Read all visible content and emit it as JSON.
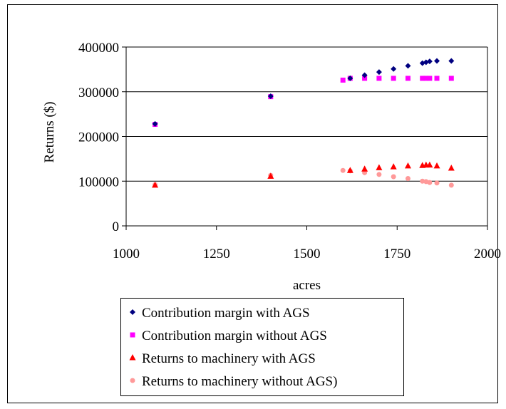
{
  "chart_data": {
    "type": "scatter",
    "title": "",
    "xlabel": "acres",
    "ylabel": "Returns ($)",
    "xlim": [
      1000,
      2000
    ],
    "ylim": [
      0,
      400000
    ],
    "x_ticks": [
      "1000",
      "1250",
      "1500",
      "1750",
      "2000"
    ],
    "y_ticks": [
      "0",
      "100000",
      "200000",
      "300000",
      "400000"
    ],
    "grid": "horizontal",
    "legend_position": "bottom",
    "series": [
      {
        "name": "Contribution margin with AGS",
        "marker": "diamond",
        "color": "#000080",
        "points": [
          [
            1080,
            228000
          ],
          [
            1400,
            290000
          ],
          [
            1620,
            330000
          ],
          [
            1660,
            337000
          ],
          [
            1700,
            344000
          ],
          [
            1740,
            351000
          ],
          [
            1780,
            358000
          ],
          [
            1820,
            364000
          ],
          [
            1830,
            366000
          ],
          [
            1840,
            368000
          ],
          [
            1860,
            369000
          ],
          [
            1900,
            369000
          ]
        ]
      },
      {
        "name": "Contribution margin without AGS",
        "marker": "square",
        "color": "#FF00FF",
        "points": [
          [
            1080,
            227000
          ],
          [
            1400,
            289000
          ],
          [
            1600,
            326000
          ],
          [
            1620,
            330000
          ],
          [
            1660,
            330000
          ],
          [
            1700,
            330000
          ],
          [
            1740,
            330000
          ],
          [
            1780,
            330000
          ],
          [
            1820,
            330000
          ],
          [
            1830,
            330000
          ],
          [
            1840,
            330000
          ],
          [
            1860,
            330000
          ],
          [
            1900,
            330000
          ]
        ]
      },
      {
        "name": "Returns to machinery with AGS",
        "marker": "triangle",
        "color": "#FF0000",
        "points": [
          [
            1080,
            91000
          ],
          [
            1400,
            111000
          ],
          [
            1620,
            124000
          ],
          [
            1660,
            127000
          ],
          [
            1700,
            130000
          ],
          [
            1740,
            132000
          ],
          [
            1780,
            134000
          ],
          [
            1820,
            135000
          ],
          [
            1830,
            136000
          ],
          [
            1840,
            136000
          ],
          [
            1860,
            134000
          ],
          [
            1900,
            129000
          ]
        ]
      },
      {
        "name": "Returns to machinery without AGS)",
        "marker": "circle",
        "color": "#FF9999",
        "points": [
          [
            1080,
            92000
          ],
          [
            1400,
            113000
          ],
          [
            1600,
            124000
          ],
          [
            1620,
            123000
          ],
          [
            1660,
            119000
          ],
          [
            1700,
            115000
          ],
          [
            1740,
            110000
          ],
          [
            1780,
            106000
          ],
          [
            1820,
            100000
          ],
          [
            1830,
            99000
          ],
          [
            1840,
            97000
          ],
          [
            1860,
            96000
          ],
          [
            1900,
            91000
          ]
        ]
      }
    ]
  }
}
